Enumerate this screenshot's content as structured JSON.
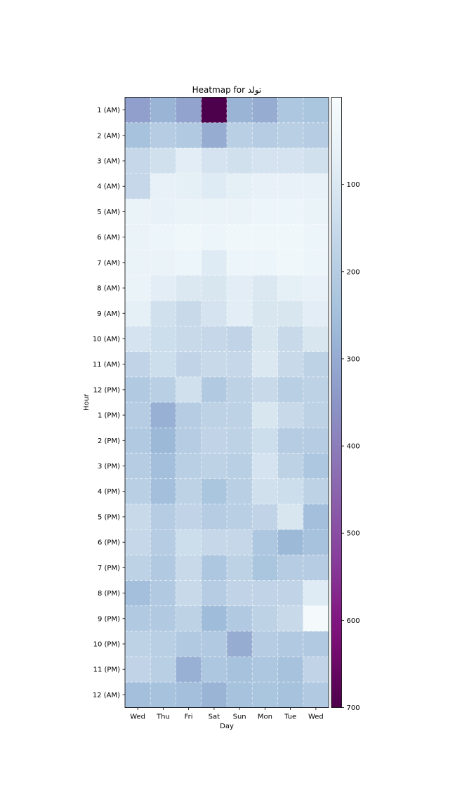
{
  "chart_data": {
    "type": "heatmap",
    "title": "Heatmap for تولد",
    "xlabel": "Day",
    "ylabel": "Hour",
    "x_categories": [
      "Wed",
      "Thu",
      "Fri",
      "Sat",
      "Sun",
      "Mon",
      "Tue",
      "Wed"
    ],
    "y_categories": [
      "1 (AM)",
      "2 (AM)",
      "3 (AM)",
      "4 (AM)",
      "5 (AM)",
      "6 (AM)",
      "7 (AM)",
      "8 (AM)",
      "9 (AM)",
      "10 (AM)",
      "11 (AM)",
      "12 (PM)",
      "1 (PM)",
      "2 (PM)",
      "3 (PM)",
      "4 (PM)",
      "5 (PM)",
      "6 (PM)",
      "7 (PM)",
      "8 (PM)",
      "9 (PM)",
      "10 (PM)",
      "11 (PM)",
      "12 (AM)"
    ],
    "values": [
      [
        330,
        280,
        320,
        700,
        280,
        300,
        220,
        230
      ],
      [
        240,
        200,
        210,
        300,
        190,
        200,
        190,
        200
      ],
      [
        160,
        130,
        80,
        120,
        130,
        120,
        120,
        130
      ],
      [
        160,
        60,
        70,
        90,
        70,
        60,
        60,
        60
      ],
      [
        50,
        60,
        50,
        50,
        50,
        40,
        40,
        50
      ],
      [
        50,
        40,
        30,
        40,
        30,
        30,
        30,
        40
      ],
      [
        50,
        50,
        40,
        90,
        40,
        40,
        30,
        40
      ],
      [
        50,
        80,
        100,
        110,
        80,
        100,
        70,
        60
      ],
      [
        70,
        130,
        150,
        120,
        80,
        110,
        110,
        80
      ],
      [
        120,
        140,
        150,
        160,
        170,
        110,
        150,
        110
      ],
      [
        170,
        140,
        170,
        150,
        160,
        100,
        150,
        180
      ],
      [
        210,
        190,
        130,
        210,
        180,
        150,
        190,
        180
      ],
      [
        200,
        290,
        200,
        180,
        180,
        110,
        150,
        180
      ],
      [
        210,
        270,
        200,
        170,
        180,
        140,
        200,
        200
      ],
      [
        200,
        250,
        190,
        180,
        190,
        120,
        180,
        220
      ],
      [
        190,
        250,
        180,
        230,
        190,
        130,
        140,
        180
      ],
      [
        150,
        200,
        170,
        200,
        190,
        170,
        110,
        250
      ],
      [
        160,
        200,
        140,
        160,
        160,
        220,
        270,
        240
      ],
      [
        180,
        210,
        150,
        220,
        180,
        230,
        200,
        200
      ],
      [
        250,
        210,
        150,
        200,
        170,
        170,
        170,
        90
      ],
      [
        210,
        210,
        180,
        260,
        210,
        180,
        150,
        10
      ],
      [
        180,
        190,
        210,
        210,
        300,
        200,
        210,
        210
      ],
      [
        170,
        190,
        290,
        220,
        240,
        220,
        240,
        170
      ],
      [
        250,
        240,
        250,
        280,
        240,
        230,
        240,
        210
      ]
    ],
    "colorbar": {
      "colormap": "BuPu",
      "vmin": 0,
      "vmax": 700,
      "ticks": [
        100,
        200,
        300,
        400,
        500,
        600,
        700
      ],
      "tick_labels": [
        "100",
        "200",
        "300",
        "400",
        "500",
        "600",
        "700"
      ]
    },
    "grid": true
  }
}
